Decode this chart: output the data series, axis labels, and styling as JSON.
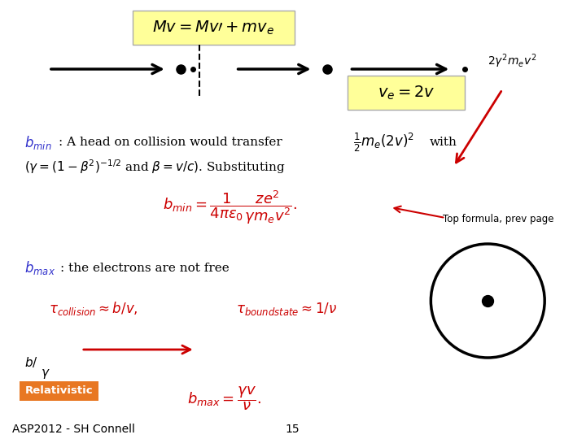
{
  "bg_color": "#ffffff",
  "title_text": "ASP2012 - SH Connell",
  "page_num": "15",
  "formula_top_box": "Mv = Mv’+mv_e",
  "formula_ve": "v_e = 2v",
  "formula_energy": "2γ²m_ev²",
  "formula_bmin_text": ": A head on collision would transfer",
  "formula_half_me": "½m_e(2v)²",
  "formula_with": "with",
  "formula_gamma": "(γ = (1 − β²)⁻½² and β = v/c). Substituting",
  "formula_bmin_eq": "b_{min} = \\frac{1}{4\\pi\\epsilon_0} \\frac{ze^2}{\\gamma m_e v^2}",
  "formula_bmax_text": ": the electrons are not free",
  "formula_tau": "\\tau_{collision} \\approx b/v,        \\tau_{boundstate} \\approx 1/v",
  "formula_bmax_eq": "b_{max} = \\frac{\\gamma v}{\\nu}",
  "top_formula_annotation": "Top formula, prev page",
  "relativistic_label": "Relativistic",
  "relativistic_bg": "#e87722",
  "top_box_bg": "#ffff99",
  "ve_box_bg": "#ffff99",
  "arrow_color": "#cc0000",
  "blue_color": "#3333cc",
  "red_color": "#cc0000",
  "black_color": "#000000"
}
